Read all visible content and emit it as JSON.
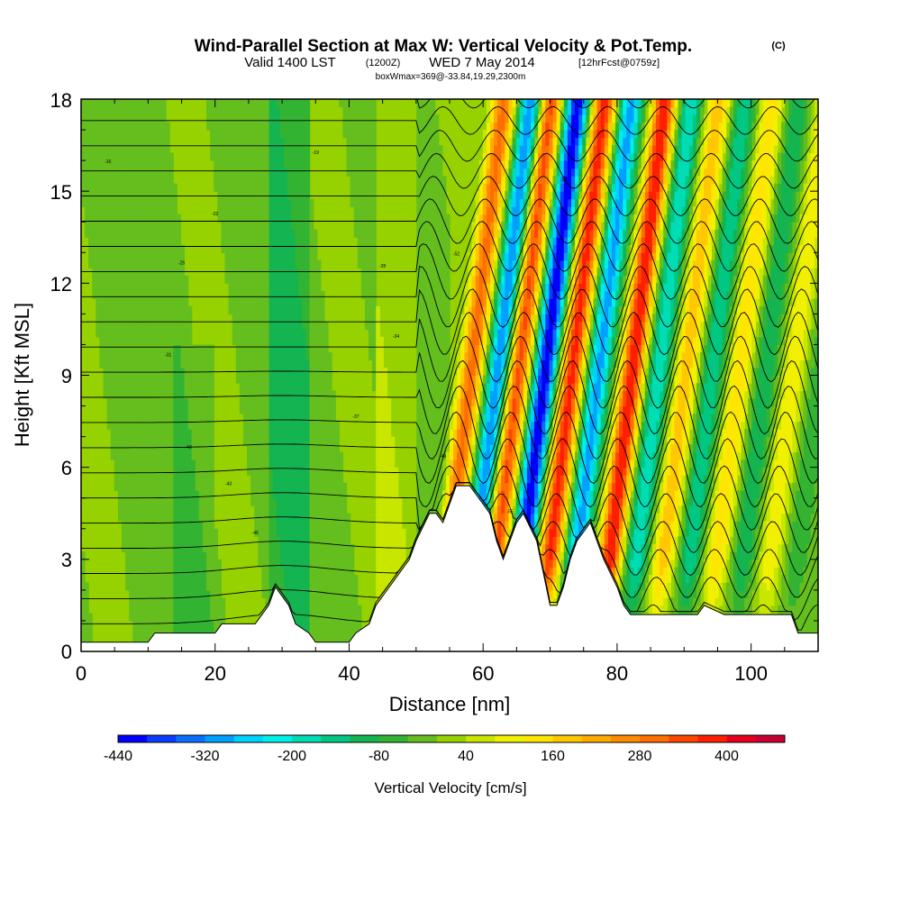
{
  "chart_data": {
    "type": "heatmap",
    "title": {
      "main": "Wind-Parallel Section at Max W: Vertical Velocity & Pot.Temp.",
      "main_suffix": "(C)",
      "subtitle_prefix": "Valid 1400 LST",
      "subtitle_utc": "(1200Z)",
      "subtitle_date": "WED 7 May 2014",
      "subtitle_fcst": "[12hrFcst@0759z]",
      "subtitle_line2": "boxWmax=369@-33.84,19.29,2300m"
    },
    "xlabel": "Distance [nm]",
    "ylabel": "Height [Kft MSL]",
    "xlim": [
      0,
      110
    ],
    "ylim": [
      0,
      18
    ],
    "xticks": [
      "0",
      "20",
      "40",
      "60",
      "80",
      "100"
    ],
    "yticks": [
      "0",
      "3",
      "6",
      "9",
      "12",
      "15",
      "18"
    ],
    "colorbar": {
      "label": "Vertical Velocity [cm/s]",
      "tick_labels": [
        "-440",
        "-320",
        "-200",
        "-80",
        "40",
        "160",
        "280",
        "400"
      ],
      "levels": [
        -440,
        -400,
        -360,
        -320,
        -280,
        -240,
        -200,
        -160,
        -120,
        -80,
        -40,
        0,
        40,
        80,
        120,
        160,
        200,
        240,
        280,
        320,
        360,
        400,
        440,
        480
      ],
      "colors": [
        "#0000ff",
        "#0a3cff",
        "#0a6eff",
        "#00a0ff",
        "#00d2ff",
        "#00f0e6",
        "#00dcb4",
        "#00c882",
        "#14b450",
        "#32b432",
        "#64be1e",
        "#96d200",
        "#c8e600",
        "#f0f000",
        "#ffe600",
        "#ffc800",
        "#ffaa00",
        "#ff8c00",
        "#ff6e00",
        "#ff4600",
        "#ff1e00",
        "#e6001e",
        "#c80032"
      ]
    },
    "terrain_height_kft": {
      "x": [
        0,
        10,
        11,
        20,
        21,
        26,
        27,
        28,
        29,
        31,
        32,
        34,
        35,
        40,
        41,
        43,
        44,
        46,
        47,
        49,
        50,
        52,
        53,
        54,
        55,
        56,
        57,
        58,
        60,
        61,
        62,
        63,
        64,
        65,
        66,
        68,
        70,
        71,
        72,
        73,
        74,
        76,
        77,
        78,
        80,
        81,
        82,
        84,
        85,
        92,
        93,
        96,
        97,
        106,
        107,
        110
      ],
      "y": [
        0.3,
        0.3,
        0.6,
        0.6,
        0.9,
        0.9,
        1.2,
        1.5,
        2.1,
        1.5,
        0.9,
        0.6,
        0.3,
        0.3,
        0.6,
        0.9,
        1.5,
        2.1,
        2.4,
        3.0,
        3.6,
        4.5,
        4.5,
        4.2,
        4.8,
        5.4,
        5.4,
        5.4,
        4.8,
        4.5,
        3.6,
        3.0,
        3.6,
        4.2,
        4.5,
        3.6,
        1.5,
        1.5,
        2.1,
        3.0,
        3.6,
        4.2,
        3.6,
        3.0,
        2.1,
        1.5,
        1.2,
        1.2,
        1.2,
        1.2,
        1.5,
        1.2,
        1.2,
        1.2,
        0.6,
        0.6
      ]
    },
    "isentrope_labels_C": [
      "-16",
      "-19",
      "-22",
      "-25",
      "-28",
      "-31",
      "-34",
      "-37",
      "-40",
      "-43",
      "-46",
      "-49",
      "-52",
      "-55",
      "-58"
    ],
    "wave_bands": [
      {
        "x": 56,
        "w_cms": 300
      },
      {
        "x": 60,
        "w_cms": -320
      },
      {
        "x": 63,
        "w_cms": 340
      },
      {
        "x": 67,
        "w_cms": -440
      },
      {
        "x": 71,
        "w_cms": 380
      },
      {
        "x": 75,
        "w_cms": -300
      },
      {
        "x": 80,
        "w_cms": 400
      },
      {
        "x": 84,
        "w_cms": -200
      },
      {
        "x": 88,
        "w_cms": 200
      },
      {
        "x": 92,
        "w_cms": -160
      },
      {
        "x": 96,
        "w_cms": 160
      },
      {
        "x": 100,
        "w_cms": -120
      },
      {
        "x": 104,
        "w_cms": 120
      },
      {
        "x": 108,
        "w_cms": -80
      }
    ]
  }
}
